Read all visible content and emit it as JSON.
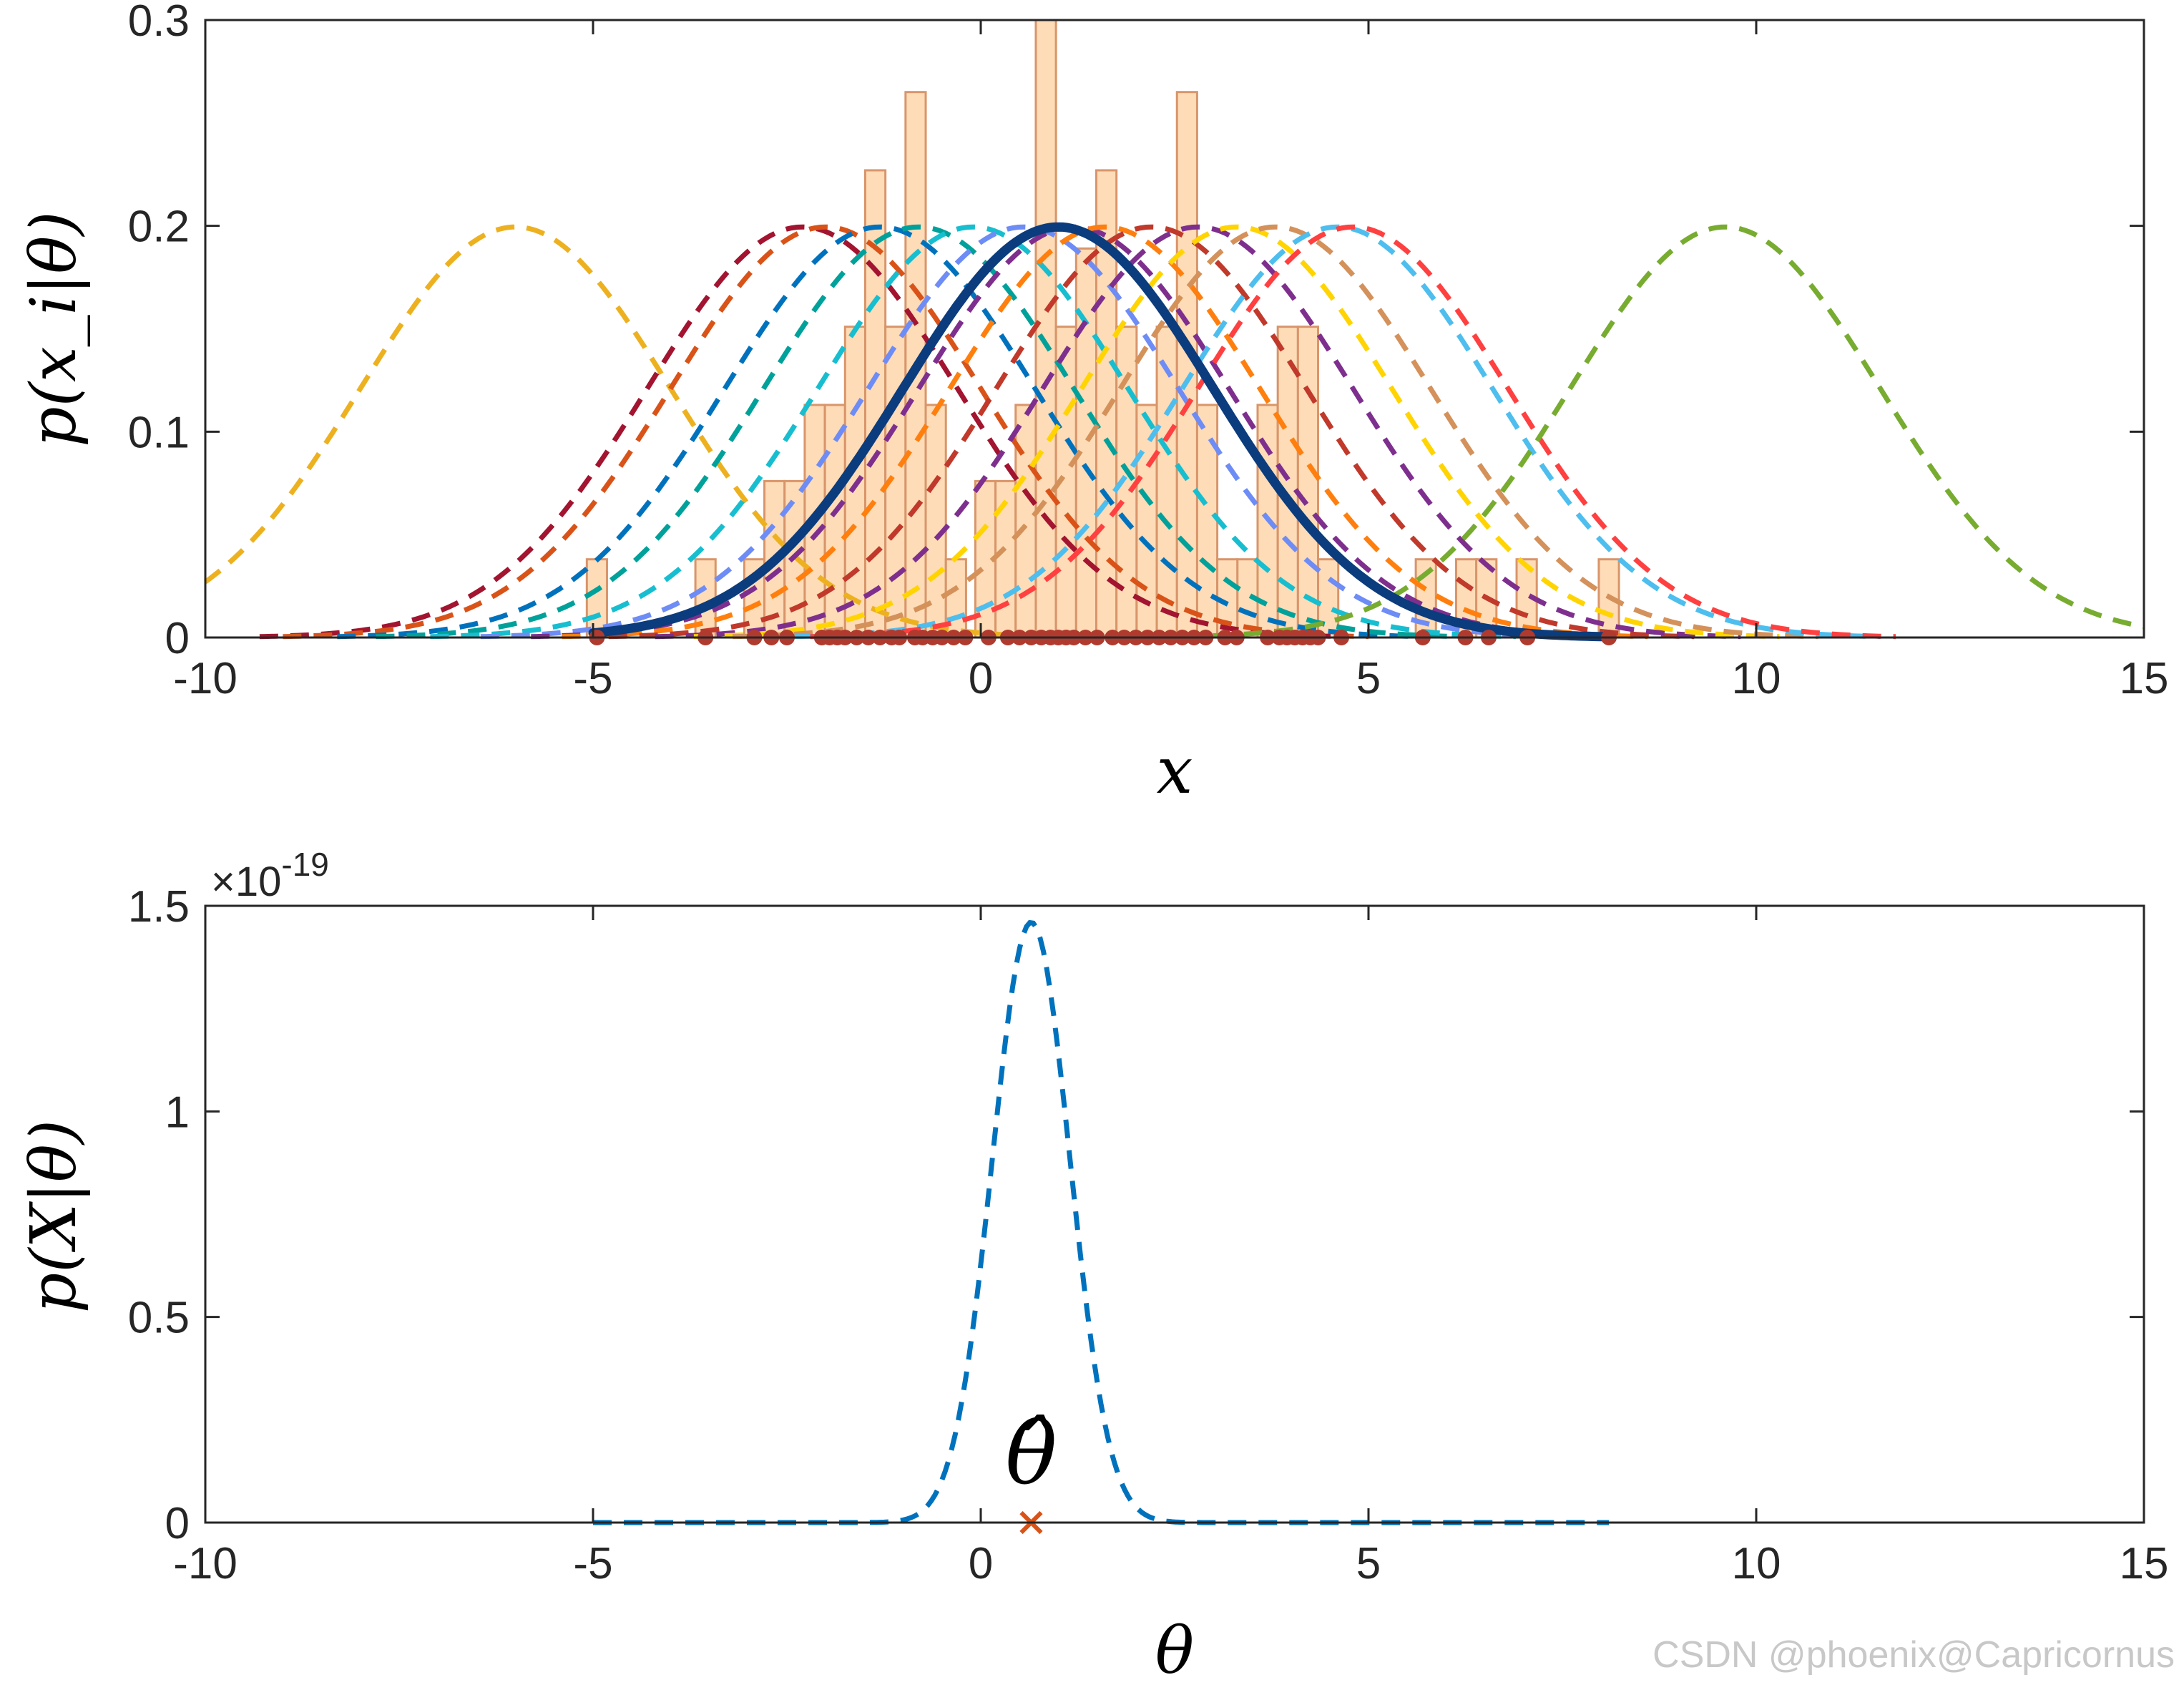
{
  "chart_data": [
    {
      "type": "line",
      "xlabel": "x",
      "ylabel": "p(x_i|θ)",
      "xlim": [
        -10,
        15
      ],
      "ylim": [
        0,
        0.3
      ],
      "xticks": [
        "-10",
        "-5",
        "0",
        "5",
        "10",
        "15"
      ],
      "yticks": [
        "0",
        "0.1",
        "0.2",
        "0.3"
      ],
      "x_tick_values": [
        -10,
        -5,
        0,
        5,
        10,
        15
      ],
      "y_tick_values": [
        0,
        0.1,
        0.2,
        0.3
      ],
      "grid": false,
      "sigma": 2,
      "histogram": {
        "color": "#fddcb7",
        "edge_color": "#d9956a",
        "bin_width": 0.26,
        "bins": [
          [
            -4.95,
            0.038
          ],
          [
            -3.55,
            0.038
          ],
          [
            -2.92,
            0.038
          ],
          [
            -2.66,
            0.076
          ],
          [
            -2.4,
            0.076
          ],
          [
            -2.14,
            0.113
          ],
          [
            -1.88,
            0.113
          ],
          [
            -1.62,
            0.151
          ],
          [
            -1.36,
            0.227
          ],
          [
            -1.1,
            0.151
          ],
          [
            -0.84,
            0.265
          ],
          [
            -0.58,
            0.113
          ],
          [
            -0.32,
            0.038
          ],
          [
            0.06,
            0.076
          ],
          [
            0.32,
            0.076
          ],
          [
            0.58,
            0.113
          ],
          [
            0.84,
            0.302
          ],
          [
            1.1,
            0.151
          ],
          [
            1.36,
            0.189
          ],
          [
            1.62,
            0.227
          ],
          [
            1.88,
            0.151
          ],
          [
            2.14,
            0.113
          ],
          [
            2.4,
            0.151
          ],
          [
            2.66,
            0.265
          ],
          [
            2.92,
            0.113
          ],
          [
            3.18,
            0.038
          ],
          [
            3.44,
            0.038
          ],
          [
            3.7,
            0.113
          ],
          [
            3.96,
            0.151
          ],
          [
            4.22,
            0.151
          ],
          [
            4.48,
            0.038
          ],
          [
            5.74,
            0.038
          ],
          [
            6.26,
            0.038
          ],
          [
            6.52,
            0.038
          ],
          [
            7.04,
            0.038
          ],
          [
            8.1,
            0.038
          ]
        ]
      },
      "samples": [
        -4.95,
        -3.55,
        -2.92,
        -2.7,
        -2.5,
        -2.05,
        -1.95,
        -1.85,
        -1.75,
        -1.6,
        -1.45,
        -1.3,
        -1.15,
        -1.05,
        -0.85,
        -0.75,
        -0.62,
        -0.5,
        -0.35,
        -0.2,
        0.1,
        0.35,
        0.5,
        0.65,
        0.78,
        0.9,
        1.0,
        1.1,
        1.2,
        1.35,
        1.5,
        1.7,
        1.85,
        2.0,
        2.15,
        2.3,
        2.45,
        2.6,
        2.75,
        2.9,
        3.15,
        3.3,
        3.7,
        3.85,
        3.95,
        4.05,
        4.15,
        4.25,
        4.35,
        4.65,
        5.7,
        6.25,
        6.55,
        7.05,
        8.1
      ],
      "sample_marker_color": "#b03a2e",
      "dashed_gaussians": [
        {
          "mean": -6.0,
          "color": "#edb120"
        },
        {
          "mean": -2.3,
          "color": "#a2142f"
        },
        {
          "mean": -2.0,
          "color": "#d95319"
        },
        {
          "mean": -1.3,
          "color": "#0072bd"
        },
        {
          "mean": -0.8,
          "color": "#00a19a"
        },
        {
          "mean": -0.1,
          "color": "#17becf"
        },
        {
          "mean": 0.55,
          "color": "#6e8cf5"
        },
        {
          "mean": 1.2,
          "color": "#7e2f8e"
        },
        {
          "mean": 1.6,
          "color": "#ff7f0e"
        },
        {
          "mean": 2.2,
          "color": "#c0392b"
        },
        {
          "mean": 2.8,
          "color": "#7e2f8e"
        },
        {
          "mean": 3.3,
          "color": "#ffd400"
        },
        {
          "mean": 3.8,
          "color": "#d4915a"
        },
        {
          "mean": 4.6,
          "color": "#4dbeee"
        },
        {
          "mean": 4.8,
          "color": "#ff4040"
        },
        {
          "mean": 9.6,
          "color": "#77ac30"
        }
      ],
      "solid_gaussian": {
        "mean": 1.0,
        "color": "#0b3c7d",
        "from": -5,
        "to": 8.1
      }
    },
    {
      "type": "line",
      "xlabel": "θ",
      "ylabel": "p(X|θ)",
      "xlim": [
        -10,
        15
      ],
      "ylim": [
        0,
        1.5
      ],
      "xticks": [
        "-10",
        "-5",
        "0",
        "5",
        "10",
        "15"
      ],
      "yticks": [
        "0",
        "0.5",
        "1",
        "1.5"
      ],
      "x_tick_values": [
        -10,
        -5,
        0,
        5,
        10,
        15
      ],
      "y_tick_values": [
        0,
        0.5,
        1,
        1.5
      ],
      "y_exponent_label": "×10",
      "y_exponent_power": "-19",
      "grid": false,
      "likelihood": {
        "peak_theta": 0.65,
        "peak_value": 1.46,
        "width": 0.5,
        "from": -5,
        "to": 8.1,
        "color": "#0072bd"
      },
      "estimate": {
        "label": "θ̂",
        "theta": 0.65,
        "value": 0,
        "marker": "x",
        "color": "#d95319"
      }
    }
  ],
  "watermark": "CSDN @phoenix@Capricornus"
}
